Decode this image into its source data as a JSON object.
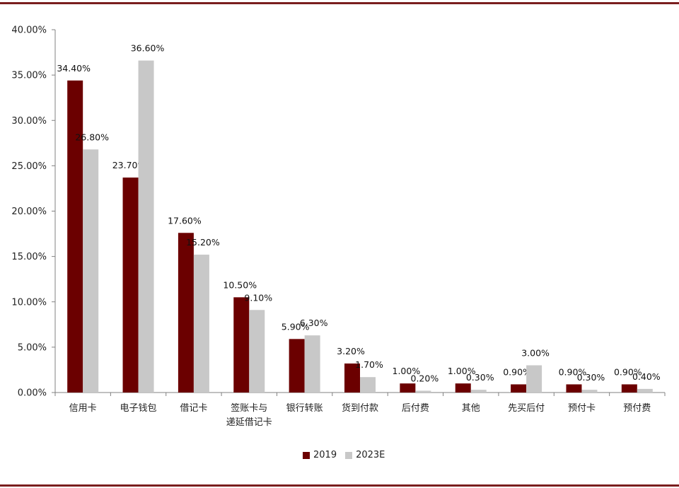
{
  "chart_data": {
    "type": "bar",
    "categories": [
      [
        "信用卡"
      ],
      [
        "电子钱包"
      ],
      [
        "借记卡"
      ],
      [
        "签账卡与",
        "递延借记卡"
      ],
      [
        "银行转账"
      ],
      [
        "货到付款"
      ],
      [
        "后付费"
      ],
      [
        "其他"
      ],
      [
        "先买后付"
      ],
      [
        "预付卡"
      ],
      [
        "预付费"
      ]
    ],
    "series": [
      {
        "name": "2019",
        "color": "#6b0000",
        "values": [
          34.4,
          23.7,
          17.6,
          10.5,
          5.9,
          3.2,
          1.0,
          1.0,
          0.9,
          0.9,
          0.9
        ],
        "labels": [
          "34.40%",
          "23.70%",
          "17.60%",
          "10.50%",
          "5.90%",
          "3.20%",
          "1.00%",
          "1.00%",
          "0.90%",
          "0.90%",
          "0.90%"
        ]
      },
      {
        "name": "2023E",
        "color": "#c8c8c8",
        "values": [
          26.8,
          36.6,
          15.2,
          9.1,
          6.3,
          1.7,
          0.2,
          0.3,
          3.0,
          0.3,
          0.4
        ],
        "labels": [
          "26.80%",
          "36.60%",
          "15.20%",
          "9.10%",
          "6.30%",
          "1.70%",
          "0.20%",
          "0.30%",
          "3.00%",
          "0.30%",
          "0.40%"
        ]
      }
    ],
    "ylim": [
      0,
      40
    ],
    "yticks": [
      0,
      5,
      10,
      15,
      20,
      25,
      30,
      35,
      40
    ],
    "ytick_labels": [
      "0.00%",
      "5.00%",
      "10.00%",
      "15.00%",
      "20.00%",
      "25.00%",
      "30.00%",
      "35.00%",
      "40.00%"
    ],
    "grid": false,
    "legend_position": "bottom-center",
    "title": "",
    "xlabel": "",
    "ylabel": ""
  },
  "colors": {
    "rule": "#7a1e1e",
    "axis": "#808080"
  }
}
